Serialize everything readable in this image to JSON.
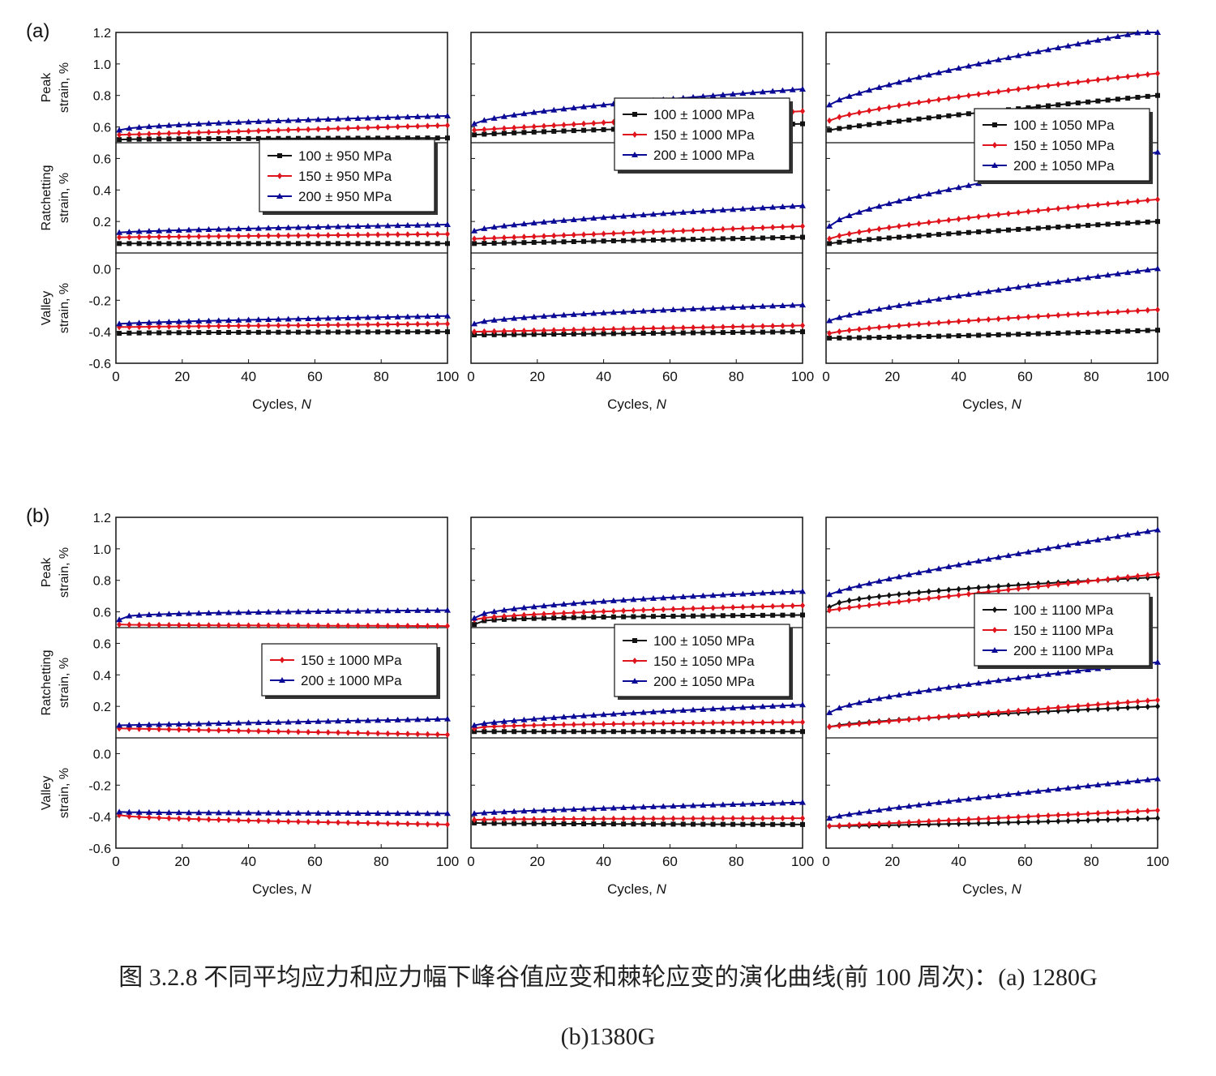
{
  "caption": {
    "line1": "图 3.2.8 不同平均应力和应力幅下峰谷值应变和棘轮应变的演化曲线(前 100 周次)：(a) 1280G",
    "line2": "(b)1380G"
  },
  "colors": {
    "black": "#111111",
    "red": "#e0141c",
    "blue": "#0a0a96"
  },
  "chart_data": [
    {
      "type": "line",
      "label": "(a)",
      "xlabel": "Cycles, N",
      "xlim": [
        0,
        100
      ],
      "xticks": [
        "0",
        "20",
        "40",
        "60",
        "80",
        "100"
      ],
      "rows": [
        {
          "name": "Peak",
          "ylabel": [
            "Peak",
            "strain, %"
          ],
          "ylim": [
            0.5,
            1.2
          ],
          "ticks": [
            0.6,
            0.8,
            1.0,
            1.2
          ],
          "tick_labels": [
            "0.6",
            "0.8",
            "1.0",
            "1.2"
          ]
        },
        {
          "name": "Ratchetting",
          "ylabel": [
            "Ratchetting",
            "strain, %"
          ],
          "ylim": [
            0.0,
            0.7
          ],
          "ticks": [
            0.2,
            0.4,
            0.6
          ],
          "tick_labels": [
            "0.2",
            "0.4",
            "0.6"
          ]
        },
        {
          "name": "Valley",
          "ylabel": [
            "Valley",
            "strain, %"
          ],
          "ylim": [
            -0.6,
            0.1
          ],
          "ticks": [
            -0.6,
            -0.4,
            -0.2,
            0.0
          ],
          "tick_labels": [
            "-0.6",
            "-0.4",
            "-0.2",
            "0.0"
          ]
        }
      ],
      "panels": [
        {
          "legend": [
            "100 ± 950 MPa",
            "150 ± 950 MPa",
            "200 ± 950 MPa"
          ],
          "legend_position": "middle-right",
          "series": [
            {
              "color": "black",
              "marker": "square",
              "peak": [
                0.52,
                0.53,
                0.53
              ],
              "ratch": [
                0.06,
                0.06,
                0.06
              ],
              "valley": [
                -0.41,
                -0.4,
                -0.4
              ]
            },
            {
              "color": "red",
              "marker": "diamond",
              "peak": [
                0.55,
                0.58,
                0.61
              ],
              "ratch": [
                0.1,
                0.11,
                0.12
              ],
              "valley": [
                -0.37,
                -0.36,
                -0.35
              ]
            },
            {
              "color": "blue",
              "marker": "triangle",
              "peak": [
                0.58,
                0.64,
                0.67
              ],
              "ratch": [
                0.13,
                0.16,
                0.18
              ],
              "valley": [
                -0.35,
                -0.32,
                -0.3
              ]
            }
          ]
        },
        {
          "legend": [
            "100 ± 1000 MPa",
            "150 ± 1000 MPa",
            "200 ± 1000 MPa"
          ],
          "legend_position": "top-right",
          "series": [
            {
              "color": "black",
              "marker": "square",
              "peak": [
                0.55,
                0.59,
                0.62
              ],
              "ratch": [
                0.06,
                0.08,
                0.1
              ],
              "valley": [
                -0.42,
                -0.41,
                -0.4
              ]
            },
            {
              "color": "red",
              "marker": "diamond",
              "peak": [
                0.58,
                0.64,
                0.7
              ],
              "ratch": [
                0.09,
                0.13,
                0.17
              ],
              "valley": [
                -0.4,
                -0.38,
                -0.36
              ]
            },
            {
              "color": "blue",
              "marker": "triangle",
              "peak": [
                0.62,
                0.76,
                0.84
              ],
              "ratch": [
                0.14,
                0.24,
                0.3
              ],
              "valley": [
                -0.35,
                -0.27,
                -0.23
              ]
            }
          ]
        },
        {
          "legend": [
            "100 ± 1050 MPa",
            "150 ± 1050 MPa",
            "200 ± 1050 MPa"
          ],
          "legend_position": "top-right",
          "series": [
            {
              "color": "black",
              "marker": "square",
              "peak": [
                0.58,
                0.7,
                0.8
              ],
              "ratch": [
                0.06,
                0.14,
                0.2
              ],
              "valley": [
                -0.44,
                -0.42,
                -0.39
              ]
            },
            {
              "color": "red",
              "marker": "diamond",
              "peak": [
                0.64,
                0.82,
                0.94
              ],
              "ratch": [
                0.09,
                0.24,
                0.34
              ],
              "valley": [
                -0.41,
                -0.32,
                -0.26
              ]
            },
            {
              "color": "blue",
              "marker": "triangle",
              "peak": [
                0.74,
                1.02,
                1.22
              ],
              "ratch": [
                0.17,
                0.46,
                0.64
              ],
              "valley": [
                -0.33,
                -0.14,
                0.0
              ]
            }
          ]
        }
      ]
    },
    {
      "type": "line",
      "label": "(b)",
      "xlabel": "Cycles, N",
      "xlim": [
        0,
        100
      ],
      "xticks": [
        "0",
        "20",
        "40",
        "60",
        "80",
        "100"
      ],
      "rows": [
        {
          "name": "Peak",
          "ylabel": [
            "Peak",
            "strain, %"
          ],
          "ylim": [
            0.5,
            1.2
          ],
          "ticks": [
            0.6,
            0.8,
            1.0,
            1.2
          ],
          "tick_labels": [
            "0.6",
            "0.8",
            "1.0",
            "1.2"
          ]
        },
        {
          "name": "Ratchetting",
          "ylabel": [
            "Ratchetting",
            "strain, %"
          ],
          "ylim": [
            0.0,
            0.7
          ],
          "ticks": [
            0.2,
            0.4,
            0.6
          ],
          "tick_labels": [
            "0.2",
            "0.4",
            "0.6"
          ]
        },
        {
          "name": "Valley",
          "ylabel": [
            "Valley",
            "strain, %"
          ],
          "ylim": [
            -0.6,
            0.1
          ],
          "ticks": [
            -0.6,
            -0.4,
            -0.2,
            0.0
          ],
          "tick_labels": [
            "-0.6",
            "-0.4",
            "-0.2",
            "0.0"
          ]
        }
      ],
      "panels": [
        {
          "legend": [
            "150 ± 1000 MPa",
            "200 ± 1000 MPa"
          ],
          "legend_position": "middle-right",
          "series": [
            {
              "color": "red",
              "marker": "diamond",
              "peak": [
                0.52,
                0.51,
                0.51
              ],
              "ratch": [
                0.06,
                0.04,
                0.02
              ],
              "valley": [
                -0.39,
                -0.43,
                -0.45
              ]
            },
            {
              "color": "blue",
              "marker": "triangle",
              "peak": [
                0.55,
                0.6,
                0.61
              ],
              "ratch": [
                0.08,
                0.1,
                0.12
              ],
              "valley": [
                -0.37,
                -0.38,
                -0.38
              ]
            }
          ]
        },
        {
          "legend": [
            "100 ± 1050 MPa",
            "150 ± 1050 MPa",
            "200 ± 1050 MPa"
          ],
          "legend_position": "middle-right",
          "series": [
            {
              "color": "black",
              "marker": "square",
              "peak": [
                0.52,
                0.57,
                0.58
              ],
              "ratch": [
                0.04,
                0.04,
                0.04
              ],
              "valley": [
                -0.44,
                -0.45,
                -0.45
              ]
            },
            {
              "color": "red",
              "marker": "diamond",
              "peak": [
                0.55,
                0.61,
                0.64
              ],
              "ratch": [
                0.06,
                0.09,
                0.1
              ],
              "valley": [
                -0.42,
                -0.42,
                -0.41
              ]
            },
            {
              "color": "blue",
              "marker": "triangle",
              "peak": [
                0.56,
                0.68,
                0.73
              ],
              "ratch": [
                0.08,
                0.16,
                0.21
              ],
              "valley": [
                -0.38,
                -0.34,
                -0.31
              ]
            }
          ]
        },
        {
          "legend": [
            "100 ± 1100 MPa",
            "150 ± 1100 MPa",
            "200 ± 1100 MPa"
          ],
          "legend_position": "middle-right",
          "series": [
            {
              "color": "black",
              "marker": "diamond",
              "peak": [
                0.63,
                0.76,
                0.82
              ],
              "ratch": [
                0.07,
                0.15,
                0.2
              ],
              "valley": [
                -0.46,
                -0.44,
                -0.41
              ]
            },
            {
              "color": "red",
              "marker": "diamond",
              "peak": [
                0.61,
                0.73,
                0.84
              ],
              "ratch": [
                0.07,
                0.16,
                0.24
              ],
              "valley": [
                -0.46,
                -0.41,
                -0.36
              ]
            },
            {
              "color": "blue",
              "marker": "triangle",
              "peak": [
                0.71,
                0.94,
                1.12
              ],
              "ratch": [
                0.16,
                0.36,
                0.48
              ],
              "valley": [
                -0.41,
                -0.27,
                -0.16
              ]
            }
          ]
        }
      ]
    }
  ]
}
